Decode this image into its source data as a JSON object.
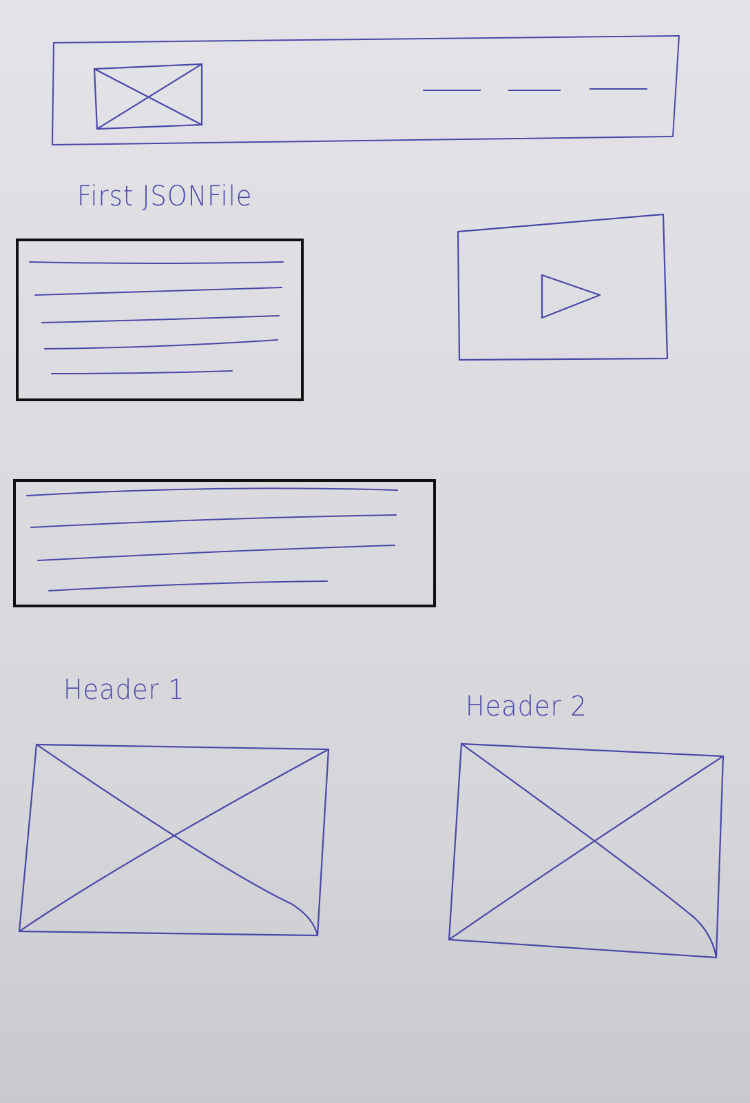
{
  "colors": {
    "ink": "#4a48a8",
    "box_border": "#111111",
    "paper": "#e0dfe4"
  },
  "header": {
    "logo_icon": "image-placeholder-icon",
    "nav_items": 3
  },
  "section": {
    "title": "First JSONFile",
    "text_block_1_lines": 5,
    "video_icon": "play-icon",
    "text_block_2_lines": 4
  },
  "gallery": {
    "header_1": "Header 1",
    "header_2": "Header 2",
    "image_icon": "image-placeholder-icon"
  }
}
